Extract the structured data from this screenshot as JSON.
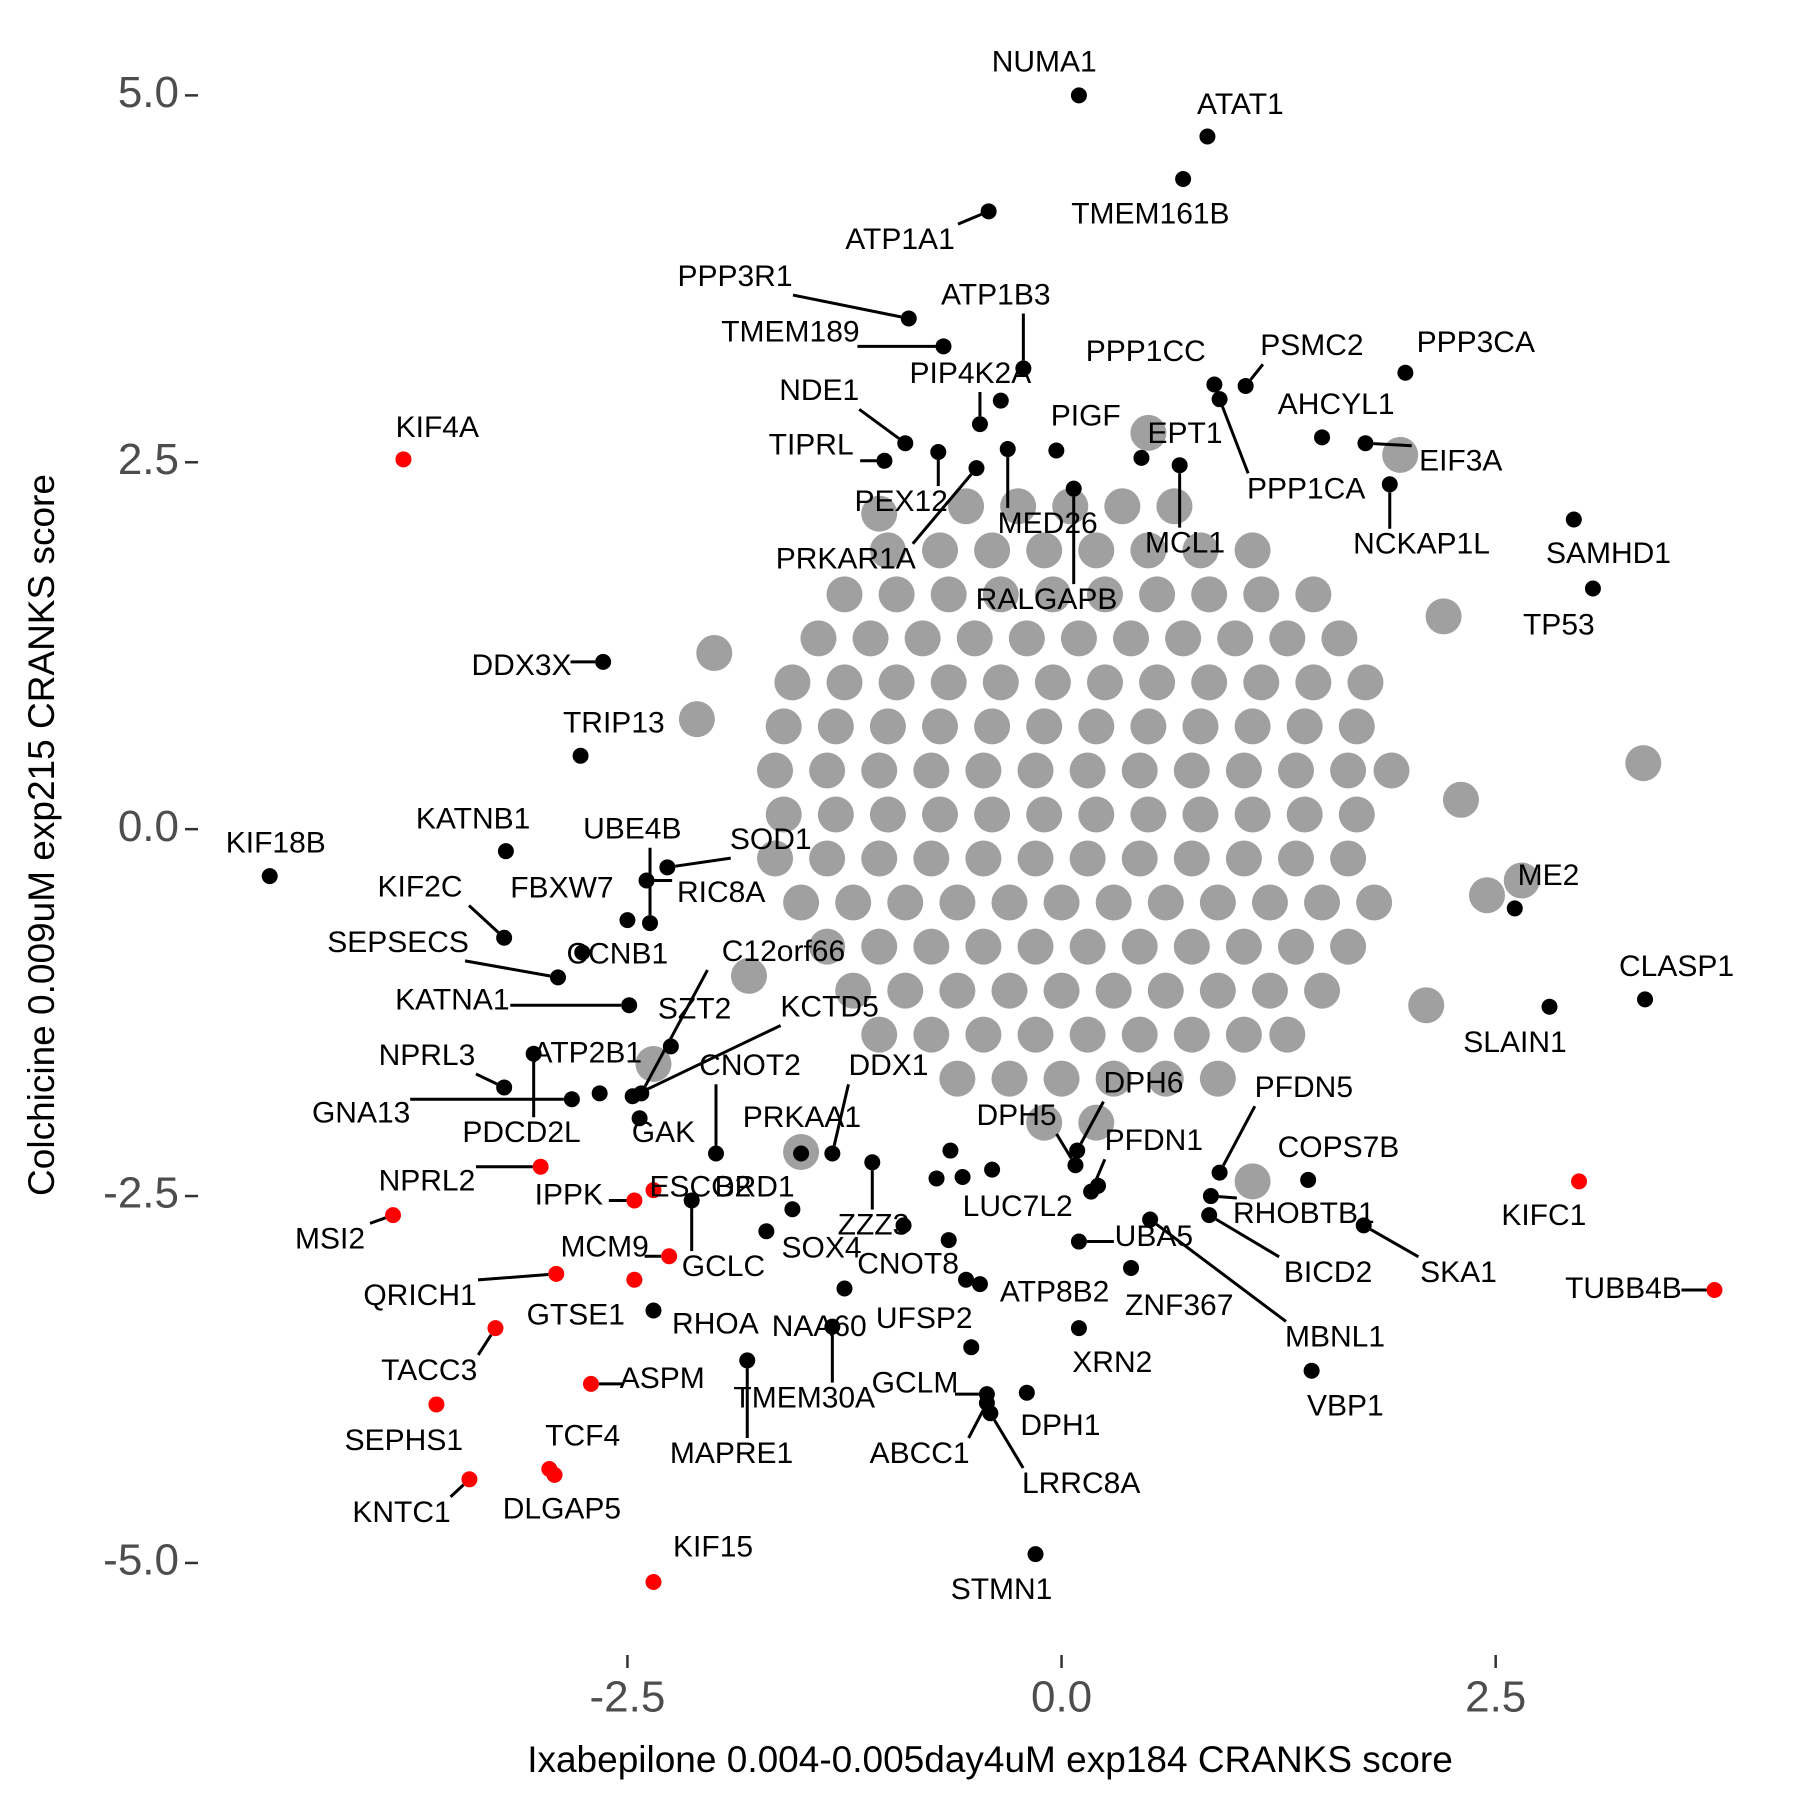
{
  "chart_data": {
    "type": "scatter",
    "xlabel": "Ixabepilone 0.004-0.005day4uM exp184 CRANKS score",
    "ylabel": "Colchicine 0.009uM exp215 CRANKS score",
    "xlim": [
      -4.95,
      4.12
    ],
    "ylim": [
      -5.6,
      5.5
    ],
    "xticks": [
      {
        "value": -2.5,
        "label": "-2.5"
      },
      {
        "value": 0,
        "label": "0.0"
      },
      {
        "value": 2.5,
        "label": "2.5"
      }
    ],
    "yticks": [
      {
        "value": -5,
        "label": "-5.0"
      },
      {
        "value": -2.5,
        "label": "-2.5"
      },
      {
        "value": 0,
        "label": "0.0"
      },
      {
        "value": 2.5,
        "label": "2.5"
      },
      {
        "value": 5,
        "label": "5.0"
      }
    ],
    "series": [
      {
        "color": "#a0a0a0",
        "x": [
          -0.55,
          -0.25,
          0.05,
          0.35,
          0.65,
          -1.0,
          -0.7,
          -0.4,
          -0.1,
          0.2,
          0.5,
          0.8,
          1.1,
          -1.25,
          -0.95,
          -0.65,
          -0.35,
          -0.05,
          0.25,
          0.55,
          0.85,
          1.15,
          1.45,
          -1.4,
          -1.1,
          -0.8,
          -0.5,
          -0.2,
          0.1,
          0.4,
          0.7,
          1.0,
          1.3,
          1.6,
          -1.55,
          -1.25,
          -0.95,
          -0.65,
          -0.35,
          -0.05,
          0.25,
          0.55,
          0.85,
          1.15,
          1.45,
          1.75,
          -1.6,
          -1.3,
          -1.0,
          -0.7,
          -0.4,
          -0.1,
          0.2,
          0.5,
          0.8,
          1.1,
          1.4,
          1.7,
          -1.65,
          -1.35,
          -1.05,
          -0.75,
          -0.45,
          -0.15,
          0.15,
          0.45,
          0.75,
          1.05,
          1.35,
          1.65,
          1.9,
          -1.6,
          -1.3,
          -1.0,
          -0.7,
          -0.4,
          -0.1,
          0.2,
          0.5,
          0.8,
          1.1,
          1.4,
          1.7,
          -1.65,
          -1.35,
          -1.05,
          -0.75,
          -0.45,
          -0.15,
          0.15,
          0.45,
          0.75,
          1.05,
          1.35,
          1.65,
          -1.5,
          -1.2,
          -0.9,
          -0.6,
          -0.3,
          0,
          0.3,
          0.6,
          0.9,
          1.2,
          1.5,
          1.8,
          -1.35,
          -1.05,
          -0.75,
          -0.45,
          -0.15,
          0.15,
          0.45,
          0.75,
          1.05,
          1.35,
          1.65,
          -1.2,
          -0.9,
          -0.6,
          -0.3,
          0,
          0.3,
          0.6,
          0.9,
          1.2,
          1.5,
          -1.05,
          -0.75,
          -0.45,
          -0.15,
          0.15,
          0.45,
          0.75,
          1.05,
          1.3,
          -0.6,
          -0.3,
          0,
          0.3,
          0.6,
          0.9,
          -0.1,
          0.2,
          3.35,
          2.45,
          2.65,
          2.2,
          1.95,
          -2.1,
          -2.0,
          -2.35,
          2.1,
          1.1,
          -1.5,
          0.5,
          -1.05,
          -1.8,
          2.3
        ],
        "values": [
          2.2,
          2.2,
          2.2,
          2.2,
          2.2,
          1.9,
          1.9,
          1.9,
          1.9,
          1.9,
          1.9,
          1.9,
          1.9,
          1.6,
          1.6,
          1.6,
          1.6,
          1.6,
          1.6,
          1.6,
          1.6,
          1.6,
          1.6,
          1.3,
          1.3,
          1.3,
          1.3,
          1.3,
          1.3,
          1.3,
          1.3,
          1.3,
          1.3,
          1.3,
          1.0,
          1.0,
          1.0,
          1.0,
          1.0,
          1.0,
          1.0,
          1.0,
          1.0,
          1.0,
          1.0,
          1.0,
          0.7,
          0.7,
          0.7,
          0.7,
          0.7,
          0.7,
          0.7,
          0.7,
          0.7,
          0.7,
          0.7,
          0.7,
          0.4,
          0.4,
          0.4,
          0.4,
          0.4,
          0.4,
          0.4,
          0.4,
          0.4,
          0.4,
          0.4,
          0.4,
          0.4,
          0.1,
          0.1,
          0.1,
          0.1,
          0.1,
          0.1,
          0.1,
          0.1,
          0.1,
          0.1,
          0.1,
          0.1,
          -0.2,
          -0.2,
          -0.2,
          -0.2,
          -0.2,
          -0.2,
          -0.2,
          -0.2,
          -0.2,
          -0.2,
          -0.2,
          -0.2,
          -0.5,
          -0.5,
          -0.5,
          -0.5,
          -0.5,
          -0.5,
          -0.5,
          -0.5,
          -0.5,
          -0.5,
          -0.5,
          -0.5,
          -0.8,
          -0.8,
          -0.8,
          -0.8,
          -0.8,
          -0.8,
          -0.8,
          -0.8,
          -0.8,
          -0.8,
          -0.8,
          -1.1,
          -1.1,
          -1.1,
          -1.1,
          -1.1,
          -1.1,
          -1.1,
          -1.1,
          -1.1,
          -1.1,
          -1.4,
          -1.4,
          -1.4,
          -1.4,
          -1.4,
          -1.4,
          -1.4,
          -1.4,
          -1.4,
          -1.7,
          -1.7,
          -1.7,
          -1.7,
          -1.7,
          -1.7,
          -2.0,
          -2.0,
          0.45,
          -0.45,
          -0.35,
          1.45,
          2.55,
          0.75,
          1.2,
          -1.6,
          -1.2,
          -2.4,
          -2.2,
          2.7,
          2.15,
          -1.0,
          0.2
        ]
      },
      {
        "color": "#000000",
        "x": [
          0.1,
          0.84,
          0.7,
          -0.42,
          -0.88,
          -0.68,
          -0.22,
          -0.47,
          -0.9,
          -1.02,
          0.88,
          1.06,
          1.98,
          1.5,
          0.91,
          1.75,
          -0.03,
          0.46,
          0.68,
          1.89,
          -0.71,
          -0.31,
          -0.49,
          0.07,
          2.95,
          3.06,
          -2.64,
          -2.77,
          -4.56,
          -3.2,
          -2.37,
          -2.27,
          -2.5,
          -2.39,
          -3.21,
          -2.9,
          -2.76,
          -2.49,
          -2.42,
          -2.25,
          -2.47,
          -2.66,
          -3.21,
          -2.82,
          -3.04,
          -1.99,
          -1.32,
          -1.5,
          -2.43,
          -1.55,
          -1.09,
          -2.13,
          -1.7,
          -0.91,
          -2.35,
          -1.25,
          -0.52,
          -1.32,
          -1.81,
          -0.43,
          -0.2,
          -0.43,
          -0.41,
          -0.15,
          0.09,
          0.08,
          0.17,
          0.91,
          1.42,
          0.21,
          0.86,
          0.1,
          0.85,
          1.74,
          -0.47,
          0.4,
          0.51,
          0.1,
          1.44,
          2.61,
          3.36,
          2.81,
          -0.35,
          -0.64,
          -0.72,
          -0.57,
          -0.4,
          -0.65,
          -0.55
        ],
        "values": [
          5.0,
          4.72,
          4.43,
          4.21,
          3.48,
          3.29,
          3.14,
          2.76,
          2.63,
          2.51,
          3.03,
          3.02,
          3.11,
          2.67,
          2.93,
          2.63,
          2.58,
          2.53,
          2.48,
          2.35,
          2.57,
          2.59,
          2.46,
          2.32,
          2.11,
          1.64,
          1.14,
          0.5,
          -0.32,
          -0.15,
          -0.64,
          -0.26,
          -0.62,
          -0.35,
          -0.74,
          -1.01,
          -0.84,
          -1.2,
          -1.8,
          -1.48,
          -1.82,
          -1.8,
          -1.76,
          -1.84,
          -1.53,
          -2.21,
          -2.21,
          -2.21,
          -1.97,
          -2.59,
          -2.27,
          -2.53,
          -2.74,
          -2.7,
          -3.28,
          -3.13,
          -3.53,
          -3.39,
          -3.62,
          -3.85,
          -3.84,
          -3.91,
          -3.98,
          -4.94,
          -2.19,
          -2.29,
          -2.47,
          -2.34,
          -2.39,
          -2.43,
          -2.5,
          -2.81,
          -2.63,
          -2.7,
          -3.1,
          -2.99,
          -2.66,
          -3.4,
          -3.69,
          -0.54,
          -1.16,
          -1.21,
          2.92,
          -2.19,
          -2.38,
          -2.37,
          -2.32,
          -2.8,
          -3.07
        ],
        "labels": [
          "NUMA1",
          "ATAT1",
          "TMEM161B",
          "ATP1A1",
          "PPP3R1",
          "TMEM189",
          "ATP1B3",
          "PIP4K2A",
          "NDE1",
          "TIPRL",
          "PPP1CC",
          "PSMC2",
          "PPP3CA",
          "AHCYL1",
          "PPP1CA",
          "EIF3A",
          "PIGF",
          "EPT1",
          "MCL1",
          "NCKAP1L",
          "PEX12",
          "MED26",
          "PRKAR1A",
          "RALGAPB",
          "SAMHD1",
          "TP53",
          "DDX3X",
          "TRIP13",
          "KIF18B",
          "KATNB1",
          "UBE4B",
          "SOD1",
          "FBXW7",
          "RIC8A",
          "KIF2C",
          "SEPSECS",
          "CCNB1",
          "KATNA1",
          "C12orf66",
          "SZT2",
          "KCTD5",
          "ATP2B1",
          "NPRL3",
          "GNA13",
          "PDCD2L",
          "CNOT2",
          "DDX1",
          "PRKAA1",
          "GAK",
          "BRD1",
          "ZZZ3",
          "GCLC",
          "SOX4",
          "CNOT8",
          "RHOA",
          "NAA60",
          "UFSP2",
          "TMEM30A",
          "MAPRE1",
          "GCLM",
          "DPH1",
          "ABCC1",
          "LRRC8A",
          "STMN1",
          "DPH6",
          "DPH5",
          "PFDN1",
          "PFDN5",
          "COPS7B",
          "LUC7L2",
          "RHOBTB1",
          "UBA5",
          "BICD2",
          "SKA1",
          "ATP8B2",
          "ZNF367",
          "MBNL1",
          "XRN2",
          "VBP1",
          "ME2",
          "CLASP1",
          "SLAIN1",
          null,
          null,
          null,
          null,
          null,
          null,
          null
        ]
      },
      {
        "color": "#ff0000",
        "x": [
          -3.79,
          -2.46,
          -3.0,
          -3.85,
          -2.35,
          -2.26,
          -2.91,
          -2.46,
          -3.26,
          -2.71,
          -3.6,
          -2.95,
          -3.41,
          -2.92,
          -2.35,
          2.98,
          3.76
        ],
        "values": [
          2.52,
          -2.53,
          -2.3,
          -2.63,
          -2.46,
          -2.91,
          -3.03,
          -3.07,
          -3.4,
          -3.78,
          -3.92,
          -4.36,
          -4.43,
          -4.4,
          -5.13,
          -2.4,
          -3.14
        ],
        "labels": [
          "KIF4A",
          "IPPK",
          "NPRL2",
          "MSI2",
          "ESCO2",
          "MCM9",
          "QRICH1",
          "GTSE1",
          "TACC3",
          "ASPM",
          "SEPHS1",
          "TCF4",
          "KNTC1",
          "DLGAP5",
          "KIF15",
          "KIFC1",
          "TUBB4B"
        ]
      }
    ]
  }
}
